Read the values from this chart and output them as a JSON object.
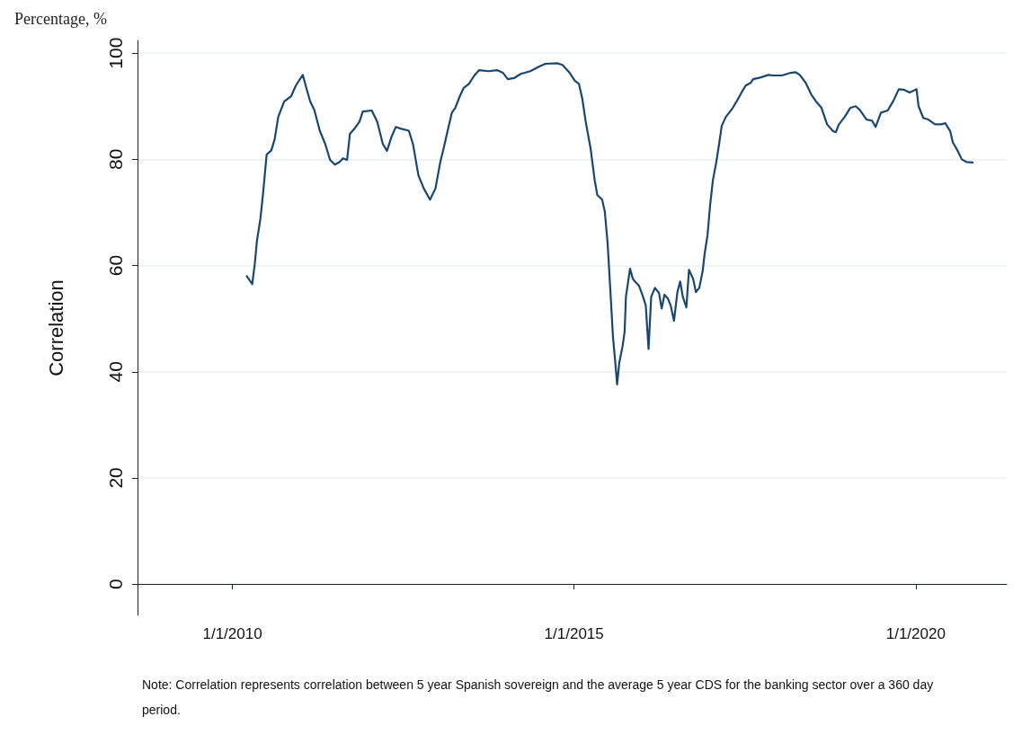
{
  "chart_data": {
    "type": "line",
    "title": "Percentage, %",
    "ylabel": "Correlation",
    "annotations": [
      "Note: Correlation represents correlation between 5 year Spanish sovereign and the average 5 year CDS for the banking sector over a 360 day period."
    ],
    "xlim": [
      "2008-08-12",
      "2021-05-01"
    ],
    "ylim": [
      -5.9,
      102.4
    ],
    "xticks": [
      {
        "value": "2010-01-01",
        "label": "1/1/2010"
      },
      {
        "value": "2015-01-01",
        "label": "1/1/2015"
      },
      {
        "value": "2020-01-01",
        "label": "1/1/2020"
      }
    ],
    "yticks": [
      0,
      20,
      40,
      60,
      80,
      100
    ],
    "grid": "y",
    "marker": "none",
    "line_style": "solid",
    "series": [
      {
        "color": "#1a476f",
        "x": [
          "2010-03-19",
          "2010-04-17",
          "2010-05-01",
          "2010-05-12",
          "2010-05-31",
          "2010-06-14",
          "2010-07-03",
          "2010-07-28",
          "2010-08-15",
          "2010-09-03",
          "2010-10-05",
          "2010-11-11",
          "2010-12-06",
          "2011-01-12",
          "2011-02-03",
          "2011-02-21",
          "2011-03-15",
          "2011-04-13",
          "2011-05-12",
          "2011-06-07",
          "2011-07-03",
          "2011-07-28",
          "2011-08-15",
          "2011-09-06",
          "2011-09-21",
          "2011-10-16",
          "2011-11-11",
          "2011-11-29",
          "2012-01-16",
          "2012-02-14",
          "2012-03-15",
          "2012-04-06",
          "2012-05-01",
          "2012-05-23",
          "2012-06-18",
          "2012-08-01",
          "2012-08-23",
          "2012-09-21",
          "2012-10-20",
          "2012-11-22",
          "2012-12-21",
          "2013-01-16",
          "2013-02-03",
          "2013-02-21",
          "2013-03-19",
          "2013-04-06",
          "2013-04-28",
          "2013-05-20",
          "2013-06-18",
          "2013-07-17",
          "2013-08-12",
          "2013-10-02",
          "2013-11-15",
          "2013-12-17",
          "2014-01-12",
          "2014-02-14",
          "2014-03-22",
          "2014-05-12",
          "2014-06-29",
          "2014-08-01",
          "2014-10-02",
          "2014-10-31",
          "2014-12-06",
          "2015-01-05",
          "2015-01-27",
          "2015-02-14",
          "2015-03-04",
          "2015-03-30",
          "2015-04-21",
          "2015-05-05",
          "2015-05-31",
          "2015-06-14",
          "2015-06-29",
          "2015-07-13",
          "2015-07-28",
          "2015-08-12",
          "2015-08-19",
          "2015-08-30",
          "2015-09-17",
          "2015-09-28",
          "2015-10-05",
          "2015-10-27",
          "2015-11-11",
          "2015-11-22",
          "2015-12-14",
          "2016-01-01",
          "2016-01-19",
          "2016-02-03",
          "2016-02-17",
          "2016-03-08",
          "2016-03-30",
          "2016-04-13",
          "2016-04-28",
          "2016-05-16",
          "2016-05-31",
          "2016-06-18",
          "2016-07-06",
          "2016-07-21",
          "2016-08-04",
          "2016-08-23",
          "2016-09-06",
          "2016-09-28",
          "2016-10-13",
          "2016-10-31",
          "2016-11-18",
          "2016-11-29",
          "2016-12-14",
          "2016-12-28",
          "2017-01-12",
          "2017-01-30",
          "2017-02-14",
          "2017-02-28",
          "2017-03-22",
          "2017-04-28",
          "2017-05-20",
          "2017-06-14",
          "2017-07-06",
          "2017-08-01",
          "2017-08-15",
          "2017-09-21",
          "2017-11-04",
          "2017-11-29",
          "2018-01-16",
          "2018-03-04",
          "2018-03-30",
          "2018-04-21",
          "2018-05-23",
          "2018-06-22",
          "2018-07-17",
          "2018-08-15",
          "2018-09-14",
          "2018-10-16",
          "2018-10-31",
          "2018-11-15",
          "2018-12-17",
          "2019-01-16",
          "2019-02-14",
          "2019-03-08",
          "2019-04-13",
          "2019-05-12",
          "2019-05-31",
          "2019-06-29",
          "2019-08-04",
          "2019-09-03",
          "2019-10-02",
          "2019-10-31",
          "2019-11-29",
          "2020-01-05",
          "2020-01-16",
          "2020-02-10",
          "2020-03-08",
          "2020-04-13",
          "2020-05-16",
          "2020-06-07",
          "2020-07-03",
          "2020-07-17",
          "2020-08-12",
          "2020-09-03",
          "2020-09-28",
          "2020-10-31"
        ],
        "values": [
          58.0,
          56.5,
          60.4,
          64.6,
          68.9,
          73.6,
          80.9,
          81.7,
          83.8,
          88.0,
          90.9,
          91.9,
          93.9,
          95.9,
          93.1,
          90.9,
          89.3,
          85.4,
          82.9,
          79.9,
          79.0,
          79.5,
          80.2,
          79.9,
          84.8,
          85.8,
          87.1,
          89.0,
          89.2,
          87.1,
          82.9,
          81.6,
          84.3,
          86.1,
          85.8,
          85.4,
          82.9,
          77.0,
          74.5,
          72.4,
          74.5,
          79.5,
          82.1,
          84.9,
          88.8,
          89.7,
          91.7,
          93.4,
          94.2,
          95.8,
          96.8,
          96.6,
          96.8,
          96.3,
          95.1,
          95.3,
          96.1,
          96.6,
          97.5,
          98.0,
          98.1,
          97.8,
          96.4,
          94.8,
          94.2,
          91.4,
          87.1,
          82.1,
          76.1,
          73.3,
          72.4,
          70.2,
          64.3,
          55.8,
          46.5,
          40.6,
          37.6,
          41.6,
          44.8,
          47.5,
          54.1,
          59.4,
          57.5,
          57.0,
          56.2,
          54.5,
          52.5,
          44.3,
          54.1,
          55.8,
          54.8,
          51.9,
          54.5,
          53.8,
          52.5,
          49.6,
          55.0,
          57.0,
          54.1,
          52.1,
          59.2,
          57.5,
          55.0,
          55.8,
          58.9,
          62.3,
          65.7,
          71.4,
          76.1,
          79.5,
          82.9,
          86.3,
          88.0,
          89.7,
          91.0,
          92.6,
          93.9,
          94.4,
          95.1,
          95.4,
          95.9,
          95.8,
          95.8,
          96.3,
          96.4,
          95.9,
          94.4,
          92.2,
          90.9,
          89.7,
          86.6,
          85.3,
          85.1,
          86.5,
          88.0,
          89.7,
          90.0,
          89.3,
          87.5,
          87.3,
          86.1,
          88.8,
          89.2,
          91.0,
          93.2,
          93.1,
          92.6,
          93.2,
          90.0,
          87.8,
          87.5,
          86.6,
          86.6,
          86.8,
          85.3,
          83.2,
          81.6,
          80.0,
          79.5,
          79.4
        ]
      }
    ]
  }
}
